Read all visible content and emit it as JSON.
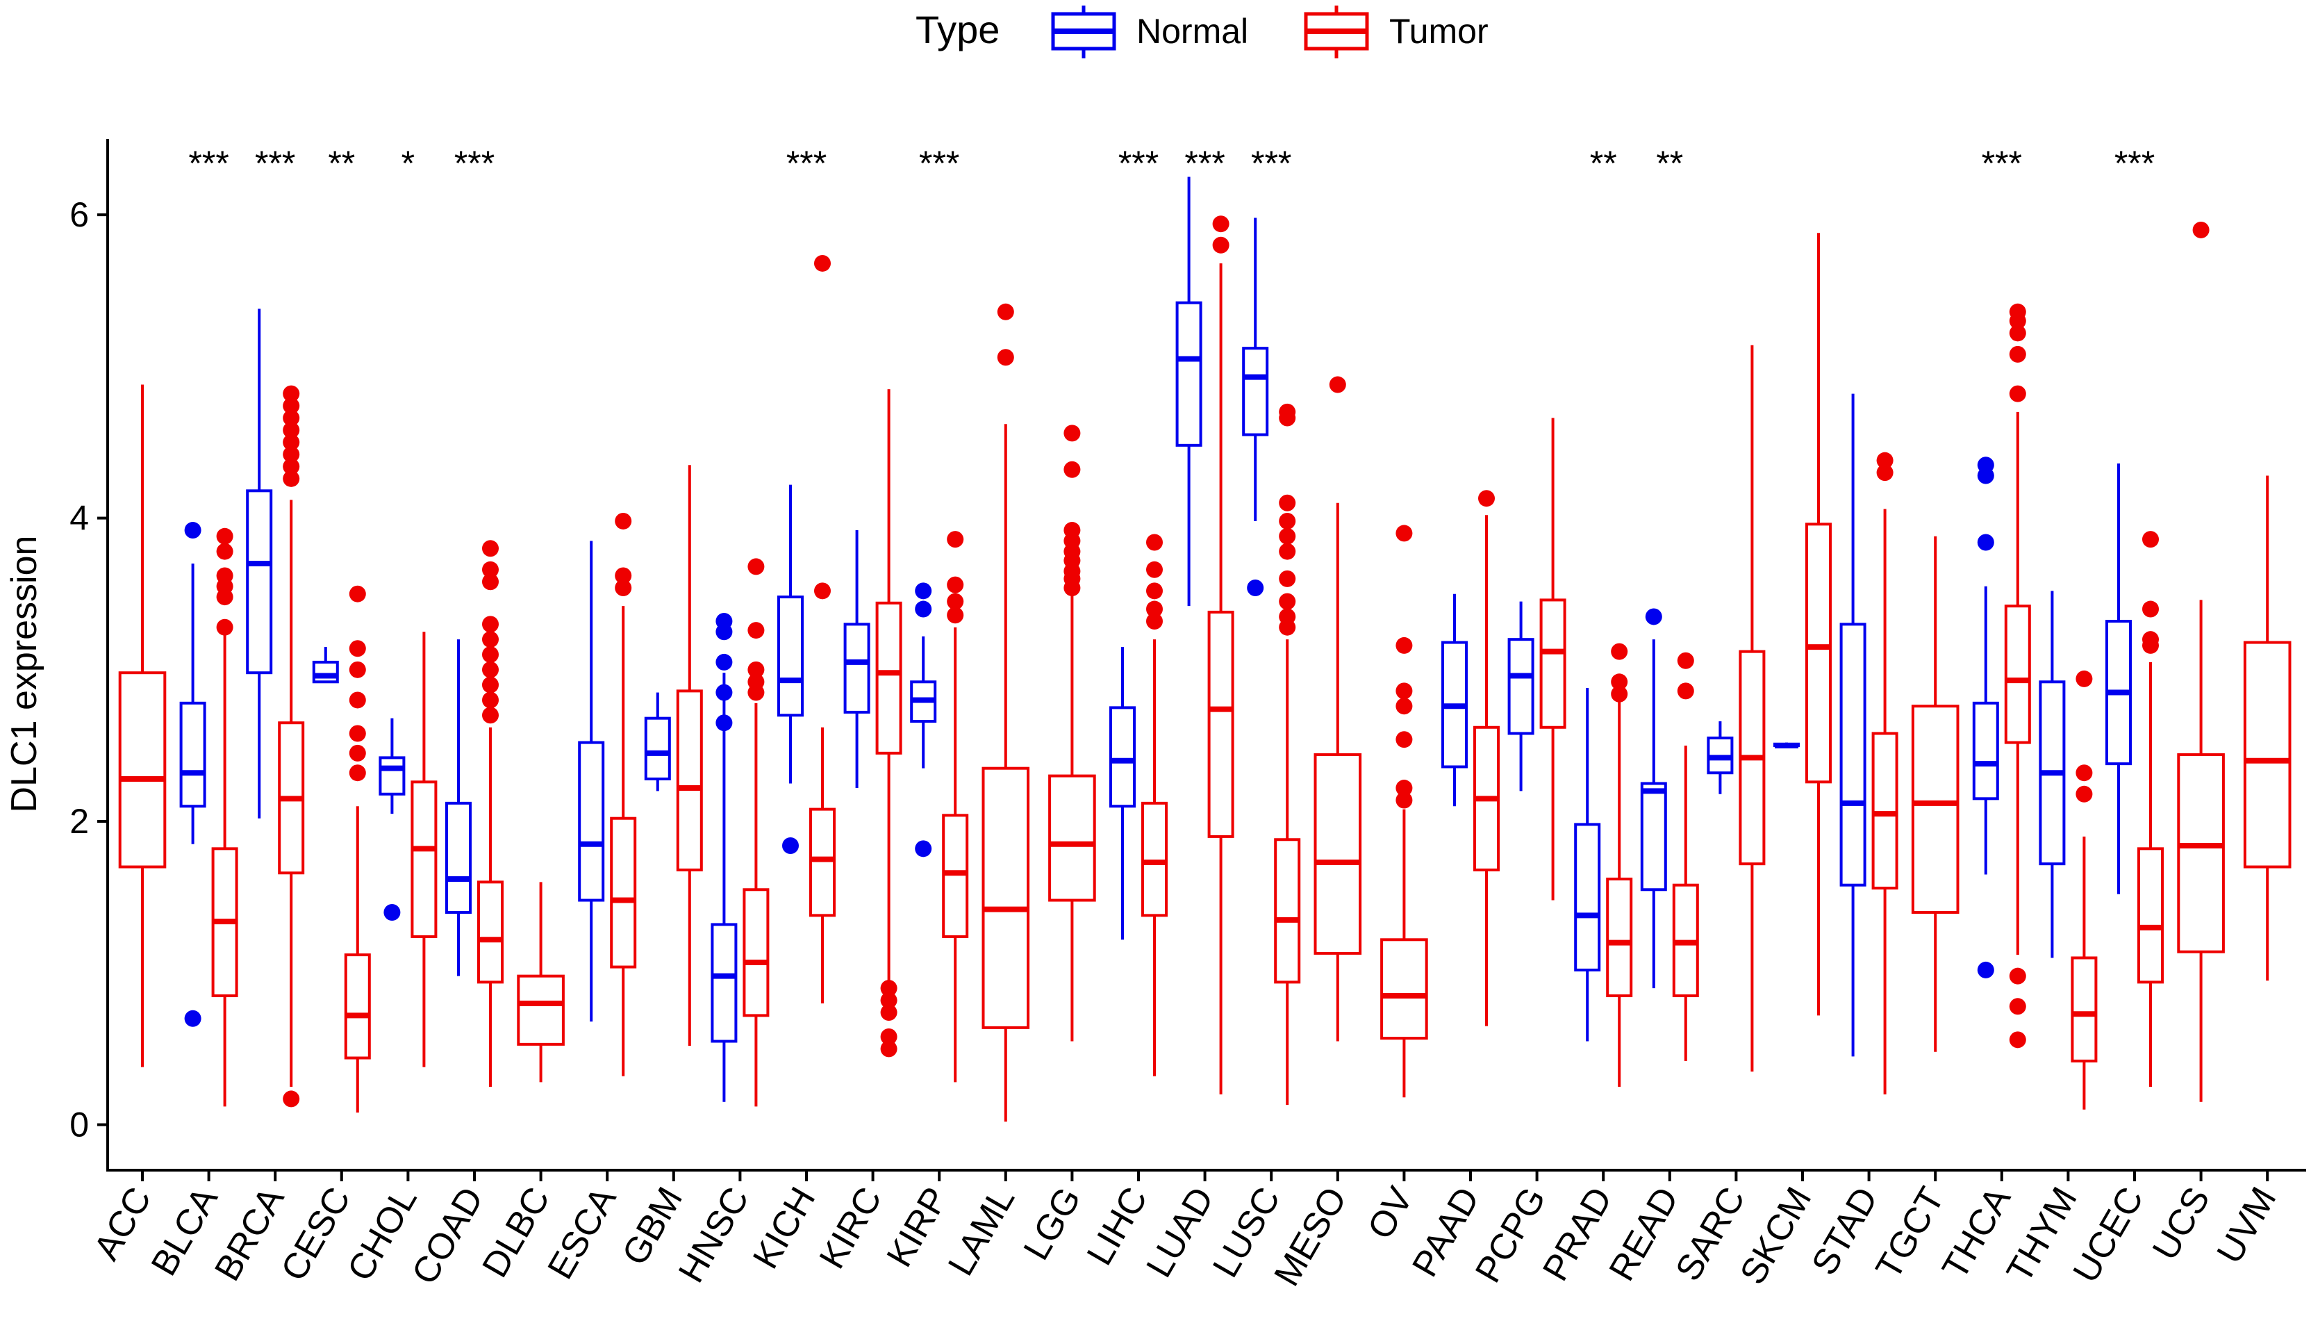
{
  "chart_data": {
    "type": "boxplot",
    "title": "",
    "xlabel": "",
    "ylabel": "DLC1 expression",
    "ylim": [
      -0.3,
      6.5
    ],
    "yticks": [
      0,
      2,
      4,
      6
    ],
    "legend": {
      "title": "Type",
      "placement": "top",
      "entries": [
        {
          "name": "Normal",
          "color": "#0000EE"
        },
        {
          "name": "Tumor",
          "color": "#EE0000"
        }
      ]
    },
    "categories": [
      "ACC",
      "BLCA",
      "BRCA",
      "CESC",
      "CHOL",
      "COAD",
      "DLBC",
      "ESCA",
      "GBM",
      "HNSC",
      "KICH",
      "KIRC",
      "KIRP",
      "LAML",
      "LGG",
      "LIHC",
      "LUAD",
      "LUSC",
      "MESO",
      "OV",
      "PAAD",
      "PCPG",
      "PRAD",
      "READ",
      "SARC",
      "SKCM",
      "STAD",
      "TGCT",
      "THCA",
      "THYM",
      "UCEC",
      "UCS",
      "UVM"
    ],
    "significance": [
      "",
      "***",
      "***",
      "**",
      "*",
      "***",
      "",
      "",
      "",
      "",
      "***",
      "",
      "***",
      "",
      "",
      "***",
      "***",
      "***",
      "",
      "",
      "",
      "",
      "**",
      "**",
      "",
      "",
      "",
      "",
      "***",
      "",
      "***",
      "",
      ""
    ],
    "series": [
      {
        "name": "Normal",
        "color": "#0000EE",
        "boxes": [
          null,
          {
            "min": 1.85,
            "q1": 2.1,
            "median": 2.32,
            "q3": 2.78,
            "max": 3.7,
            "outliers": [
              3.92,
              0.7
            ]
          },
          {
            "min": 2.02,
            "q1": 2.98,
            "median": 3.7,
            "q3": 4.18,
            "max": 5.38,
            "outliers": []
          },
          {
            "min": 2.92,
            "q1": 2.92,
            "median": 2.96,
            "q3": 3.05,
            "max": 3.15,
            "outliers": []
          },
          {
            "min": 2.05,
            "q1": 2.18,
            "median": 2.35,
            "q3": 2.42,
            "max": 2.68,
            "outliers": [
              1.4
            ]
          },
          {
            "min": 0.98,
            "q1": 1.4,
            "median": 1.62,
            "q3": 2.12,
            "max": 3.2,
            "outliers": []
          },
          null,
          {
            "min": 0.68,
            "q1": 1.48,
            "median": 1.85,
            "q3": 2.52,
            "max": 3.85,
            "outliers": []
          },
          {
            "min": 2.2,
            "q1": 2.28,
            "median": 2.45,
            "q3": 2.68,
            "max": 2.85,
            "outliers": []
          },
          {
            "min": 0.15,
            "q1": 0.55,
            "median": 0.98,
            "q3": 1.32,
            "max": 2.98,
            "outliers": [
              3.32,
              3.25,
              3.05,
              2.85,
              2.65
            ]
          },
          {
            "min": 2.25,
            "q1": 2.7,
            "median": 2.93,
            "q3": 3.48,
            "max": 4.22,
            "outliers": [
              1.84
            ]
          },
          {
            "min": 2.22,
            "q1": 2.72,
            "median": 3.05,
            "q3": 3.3,
            "max": 3.92,
            "outliers": []
          },
          {
            "min": 2.35,
            "q1": 2.66,
            "median": 2.8,
            "q3": 2.92,
            "max": 3.22,
            "outliers": [
              3.52,
              3.4,
              1.82
            ]
          },
          null,
          null,
          {
            "min": 1.22,
            "q1": 2.1,
            "median": 2.4,
            "q3": 2.75,
            "max": 3.15,
            "outliers": []
          },
          {
            "min": 3.42,
            "q1": 4.48,
            "median": 5.05,
            "q3": 5.42,
            "max": 6.25,
            "outliers": []
          },
          {
            "min": 3.98,
            "q1": 4.55,
            "median": 4.93,
            "q3": 5.12,
            "max": 5.98,
            "outliers": [
              3.54
            ]
          },
          null,
          null,
          {
            "min": 2.1,
            "q1": 2.36,
            "median": 2.76,
            "q3": 3.18,
            "max": 3.5,
            "outliers": []
          },
          {
            "min": 2.2,
            "q1": 2.58,
            "median": 2.96,
            "q3": 3.2,
            "max": 3.45,
            "outliers": []
          },
          {
            "min": 0.55,
            "q1": 1.02,
            "median": 1.38,
            "q3": 1.98,
            "max": 2.88,
            "outliers": []
          },
          {
            "min": 0.9,
            "q1": 1.55,
            "median": 2.2,
            "q3": 2.25,
            "max": 3.2,
            "outliers": [
              3.35
            ]
          },
          {
            "min": 2.18,
            "q1": 2.32,
            "median": 2.42,
            "q3": 2.55,
            "max": 2.66,
            "outliers": []
          },
          {
            "min": 2.5,
            "q1": 2.5,
            "median": 2.5,
            "q3": 2.51,
            "max": 2.52,
            "outliers": []
          },
          {
            "min": 0.45,
            "q1": 1.58,
            "median": 2.12,
            "q3": 3.3,
            "max": 4.82,
            "outliers": []
          },
          null,
          {
            "min": 1.65,
            "q1": 2.15,
            "median": 2.38,
            "q3": 2.78,
            "max": 3.55,
            "outliers": [
              4.35,
              4.28,
              3.84,
              1.02
            ]
          },
          {
            "min": 1.1,
            "q1": 1.72,
            "median": 2.32,
            "q3": 2.92,
            "max": 3.52,
            "outliers": []
          },
          {
            "min": 1.52,
            "q1": 2.38,
            "median": 2.85,
            "q3": 3.32,
            "max": 4.36,
            "outliers": []
          },
          null,
          null
        ]
      },
      {
        "name": "Tumor",
        "color": "#EE0000",
        "boxes": [
          {
            "min": 0.38,
            "q1": 1.7,
            "median": 2.28,
            "q3": 2.98,
            "max": 4.88,
            "outliers": []
          },
          {
            "min": 0.12,
            "q1": 0.85,
            "median": 1.34,
            "q3": 1.82,
            "max": 3.28,
            "outliers": [
              3.88,
              3.78,
              3.62,
              3.55,
              3.48,
              3.28
            ]
          },
          {
            "min": 0.25,
            "q1": 1.66,
            "median": 2.15,
            "q3": 2.65,
            "max": 4.12,
            "outliers": [
              4.82,
              4.74,
              4.66,
              4.58,
              4.5,
              4.42,
              4.34,
              4.26,
              0.17
            ]
          },
          {
            "min": 0.08,
            "q1": 0.44,
            "median": 0.72,
            "q3": 1.12,
            "max": 2.1,
            "outliers": [
              3.5,
              3.14,
              3.0,
              2.8,
              2.58,
              2.45,
              2.32
            ]
          },
          {
            "min": 0.38,
            "q1": 1.24,
            "median": 1.82,
            "q3": 2.26,
            "max": 3.25,
            "outliers": []
          },
          {
            "min": 0.25,
            "q1": 0.94,
            "median": 1.22,
            "q3": 1.6,
            "max": 2.62,
            "outliers": [
              3.8,
              3.66,
              3.58,
              3.3,
              3.2,
              3.1,
              3.0,
              2.9,
              2.8,
              2.7
            ]
          },
          {
            "min": 0.28,
            "q1": 0.53,
            "median": 0.8,
            "q3": 0.98,
            "max": 1.6,
            "outliers": []
          },
          {
            "min": 0.32,
            "q1": 1.04,
            "median": 1.48,
            "q3": 2.02,
            "max": 3.42,
            "outliers": [
              3.98,
              3.62,
              3.54
            ]
          },
          {
            "min": 0.52,
            "q1": 1.68,
            "median": 2.22,
            "q3": 2.86,
            "max": 4.35,
            "outliers": []
          },
          {
            "min": 0.12,
            "q1": 0.72,
            "median": 1.07,
            "q3": 1.55,
            "max": 2.78,
            "outliers": [
              3.68,
              3.26,
              3.0,
              2.92,
              2.85
            ]
          },
          {
            "min": 0.8,
            "q1": 1.38,
            "median": 1.75,
            "q3": 2.08,
            "max": 2.62,
            "outliers": [
              5.68,
              3.52
            ]
          },
          {
            "min": 0.95,
            "q1": 2.45,
            "median": 2.98,
            "q3": 3.44,
            "max": 4.85,
            "outliers": [
              0.9,
              0.82,
              0.74,
              0.58,
              0.5
            ]
          },
          {
            "min": 0.28,
            "q1": 1.24,
            "median": 1.66,
            "q3": 2.04,
            "max": 3.28,
            "outliers": [
              3.86,
              3.56,
              3.45,
              3.36
            ]
          },
          {
            "min": 0.02,
            "q1": 0.64,
            "median": 1.42,
            "q3": 2.35,
            "max": 4.62,
            "outliers": [
              5.36,
              5.06
            ]
          },
          {
            "min": 0.55,
            "q1": 1.48,
            "median": 1.85,
            "q3": 2.3,
            "max": 3.5,
            "outliers": [
              4.56,
              4.32,
              3.92,
              3.85,
              3.78,
              3.72,
              3.65,
              3.6,
              3.54
            ]
          },
          {
            "min": 0.32,
            "q1": 1.38,
            "median": 1.73,
            "q3": 2.12,
            "max": 3.2,
            "outliers": [
              3.84,
              3.66,
              3.52,
              3.4,
              3.32
            ]
          },
          {
            "min": 0.2,
            "q1": 1.9,
            "median": 2.74,
            "q3": 3.38,
            "max": 5.68,
            "outliers": [
              5.94,
              5.8
            ]
          },
          {
            "min": 0.13,
            "q1": 0.94,
            "median": 1.35,
            "q3": 1.88,
            "max": 3.2,
            "outliers": [
              4.7,
              4.66,
              4.1,
              3.98,
              3.88,
              3.78,
              3.6,
              3.45,
              3.35,
              3.28
            ]
          },
          {
            "min": 0.55,
            "q1": 1.13,
            "median": 1.73,
            "q3": 2.44,
            "max": 4.1,
            "outliers": [
              4.88
            ]
          },
          {
            "min": 0.18,
            "q1": 0.57,
            "median": 0.85,
            "q3": 1.22,
            "max": 2.08,
            "outliers": [
              3.9,
              3.16,
              2.86,
              2.76,
              2.54,
              2.22,
              2.14
            ]
          },
          {
            "min": 0.65,
            "q1": 1.68,
            "median": 2.15,
            "q3": 2.62,
            "max": 4.02,
            "outliers": [
              4.13
            ]
          },
          {
            "min": 1.48,
            "q1": 2.62,
            "median": 3.12,
            "q3": 3.46,
            "max": 4.66,
            "outliers": []
          },
          {
            "min": 0.25,
            "q1": 0.85,
            "median": 1.2,
            "q3": 1.62,
            "max": 2.8,
            "outliers": [
              3.12,
              2.92,
              2.84
            ]
          },
          {
            "min": 0.42,
            "q1": 0.85,
            "median": 1.2,
            "q3": 1.58,
            "max": 2.5,
            "outliers": [
              3.06,
              2.86
            ]
          },
          {
            "min": 0.35,
            "q1": 1.72,
            "median": 2.42,
            "q3": 3.12,
            "max": 5.14,
            "outliers": []
          },
          {
            "min": 0.72,
            "q1": 2.26,
            "median": 3.15,
            "q3": 3.96,
            "max": 5.88,
            "outliers": []
          },
          {
            "min": 0.2,
            "q1": 1.56,
            "median": 2.05,
            "q3": 2.58,
            "max": 4.06,
            "outliers": [
              4.38,
              4.3
            ]
          },
          {
            "min": 0.48,
            "q1": 1.4,
            "median": 2.12,
            "q3": 2.76,
            "max": 3.88,
            "outliers": []
          },
          {
            "min": 1.12,
            "q1": 2.52,
            "median": 2.93,
            "q3": 3.42,
            "max": 4.7,
            "outliers": [
              5.36,
              5.3,
              5.22,
              5.08,
              4.82,
              0.98,
              0.78,
              0.56
            ]
          },
          {
            "min": 0.1,
            "q1": 0.42,
            "median": 0.73,
            "q3": 1.1,
            "max": 1.9,
            "outliers": [
              2.94,
              2.32,
              2.18
            ]
          },
          {
            "min": 0.25,
            "q1": 0.94,
            "median": 1.3,
            "q3": 1.82,
            "max": 3.05,
            "outliers": [
              3.86,
              3.4,
              3.2,
              3.16
            ]
          },
          {
            "min": 0.15,
            "q1": 1.14,
            "median": 1.84,
            "q3": 2.44,
            "max": 3.46,
            "outliers": [
              5.9
            ]
          },
          {
            "min": 0.95,
            "q1": 1.7,
            "median": 2.4,
            "q3": 3.18,
            "max": 4.28,
            "outliers": []
          }
        ]
      }
    ]
  }
}
